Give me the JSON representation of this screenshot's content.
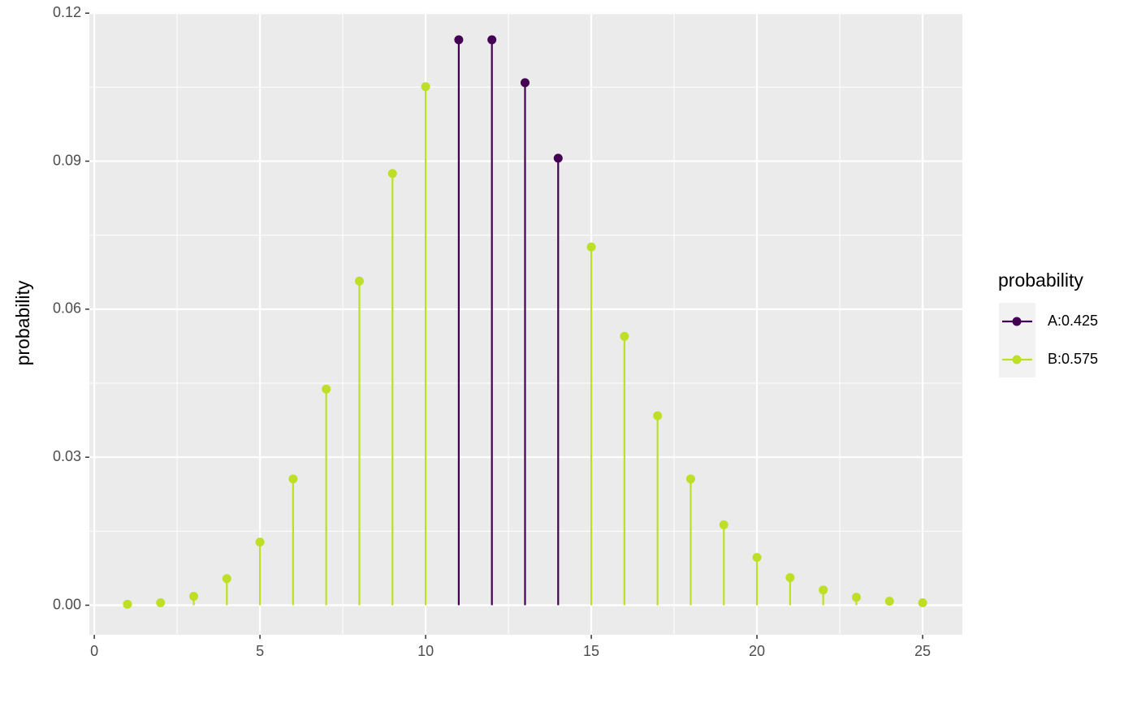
{
  "chart_data": {
    "type": "lollipop",
    "y_label": "probability",
    "legend_title": "probability",
    "legend_position": "right",
    "grid": true,
    "xlim": [
      -0.15,
      26.2
    ],
    "ylim": [
      -0.006,
      0.1202
    ],
    "xticks": [
      0,
      5,
      10,
      15,
      20,
      25
    ],
    "yticks": [
      {
        "value": 0,
        "label": "0.00"
      },
      {
        "value": 0.03,
        "label": "0.03"
      },
      {
        "value": 0.06,
        "label": "0.06"
      },
      {
        "value": 0.09,
        "label": "0.09"
      },
      {
        "value": 0.12,
        "label": "0.12"
      }
    ],
    "series": [
      {
        "name": "A:0.425",
        "color": "#440154",
        "x": [
          11,
          12,
          13,
          14
        ],
        "values": [
          0.1146,
          0.1146,
          0.1059,
          0.0906
        ]
      },
      {
        "name": "B:0.575",
        "color": "#bddf26",
        "x": [
          1,
          2,
          3,
          4,
          5,
          6,
          7,
          8,
          9,
          10,
          15,
          16,
          17,
          18,
          19,
          20,
          21,
          22,
          23,
          24,
          25
        ],
        "values": [
          0.0002,
          0.0005,
          0.0018,
          0.0054,
          0.0128,
          0.0256,
          0.0438,
          0.0657,
          0.0875,
          0.1051,
          0.0726,
          0.0545,
          0.0384,
          0.0256,
          0.0163,
          0.0097,
          0.0056,
          0.0031,
          0.0016,
          0.0008,
          0.0005
        ]
      }
    ]
  }
}
